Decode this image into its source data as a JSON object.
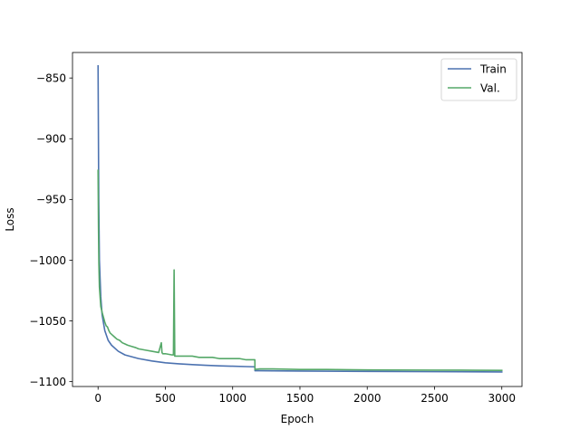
{
  "chart_data": {
    "type": "line",
    "title": "",
    "xlabel": "Epoch",
    "ylabel": "Loss",
    "xlim": [
      -190,
      3150
    ],
    "ylim": [
      -1104,
      -829
    ],
    "xticks": [
      0,
      500,
      1000,
      1500,
      2000,
      2500,
      3000
    ],
    "yticks": [
      -850,
      -900,
      -950,
      -1000,
      -1050,
      -1100
    ],
    "legend_position": "upper right",
    "grid": false,
    "series": [
      {
        "name": "Train",
        "color": "#4c72b0",
        "x": [
          0,
          5,
          10,
          20,
          30,
          50,
          75,
          100,
          150,
          200,
          300,
          400,
          500,
          600,
          700,
          800,
          900,
          1000,
          1100,
          1165,
          1166,
          1200,
          1500,
          2000,
          2500,
          3000
        ],
        "y": [
          -840,
          -950,
          -1000,
          -1030,
          -1045,
          -1058,
          -1066,
          -1070,
          -1075,
          -1078,
          -1081,
          -1083,
          -1084.5,
          -1085.3,
          -1086,
          -1086.5,
          -1087,
          -1087.3,
          -1087.6,
          -1087.8,
          -1091,
          -1091,
          -1091.3,
          -1091.6,
          -1091.8,
          -1092
        ]
      },
      {
        "name": "Val.",
        "color": "#55a868",
        "x": [
          0,
          3,
          6,
          10,
          15,
          20,
          30,
          40,
          50,
          60,
          70,
          80,
          90,
          100,
          120,
          140,
          160,
          180,
          200,
          220,
          250,
          280,
          300,
          350,
          400,
          450,
          470,
          475,
          480,
          500,
          550,
          560,
          565,
          570,
          580,
          600,
          650,
          700,
          750,
          800,
          850,
          900,
          950,
          1000,
          1050,
          1100,
          1150,
          1165,
          1166,
          1200,
          1300,
          1500,
          1700,
          2000,
          2200,
          2500,
          2800,
          3000
        ],
        "y": [
          -926,
          -972,
          -1003,
          -1022,
          -1030,
          -1038,
          -1043,
          -1047,
          -1051,
          -1054,
          -1055,
          -1058,
          -1060,
          -1061,
          -1063,
          -1065,
          -1066,
          -1068,
          -1069,
          -1070,
          -1071,
          -1072,
          -1073,
          -1074,
          -1075,
          -1076,
          -1068,
          -1076,
          -1077,
          -1077,
          -1078,
          -1078,
          -1008,
          -1079,
          -1079,
          -1079,
          -1079,
          -1079,
          -1080,
          -1080,
          -1080,
          -1081,
          -1081,
          -1081,
          -1081,
          -1082,
          -1082,
          -1082,
          -1090,
          -1089.5,
          -1089.5,
          -1090,
          -1090,
          -1090.3,
          -1090.4,
          -1090.5,
          -1090.6,
          -1090.7
        ]
      }
    ]
  }
}
